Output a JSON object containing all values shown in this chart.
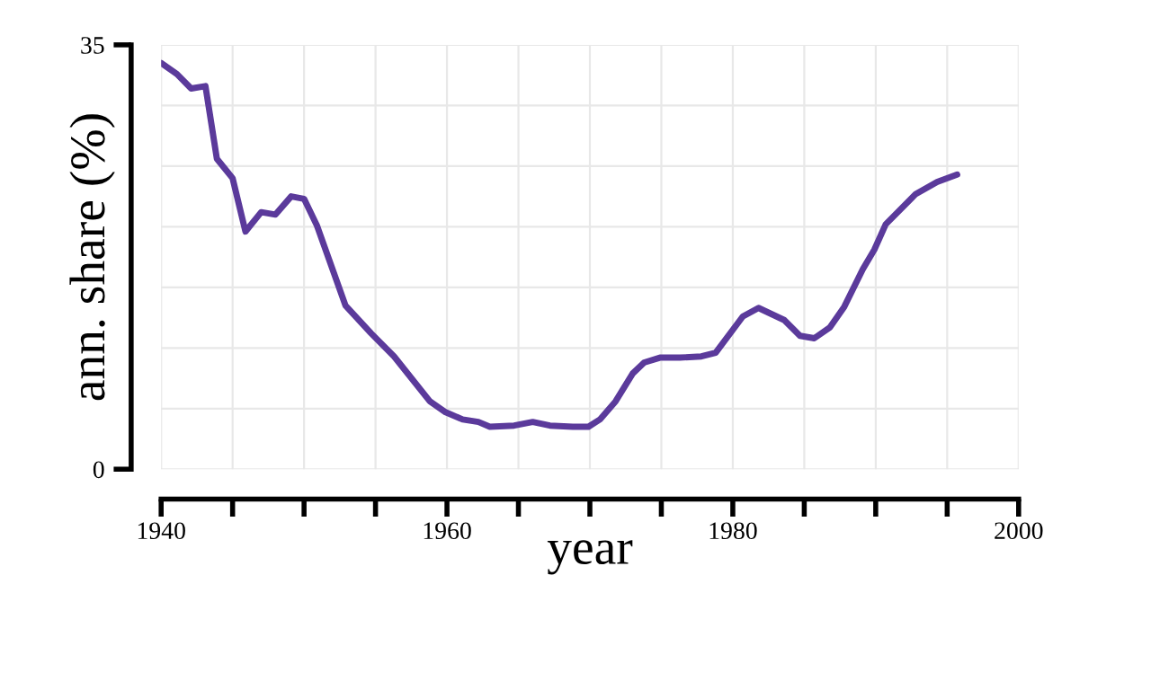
{
  "chart_data": {
    "type": "line",
    "xlabel": "year",
    "ylabel": "ann. share (%)",
    "xlim": [
      1940,
      2000
    ],
    "ylim": [
      0,
      35
    ],
    "xticks": [
      1940,
      {
        "value": 1945,
        "label": null
      },
      {
        "value": 1950,
        "label": null
      },
      {
        "value": 1955,
        "label": null
      },
      1960,
      {
        "value": 1965,
        "label": null
      },
      {
        "value": 1970,
        "label": null
      },
      {
        "value": 1975,
        "label": null
      },
      1980,
      {
        "value": 1985,
        "label": null
      },
      {
        "value": 1990,
        "label": null
      },
      {
        "value": 1995,
        "label": null
      },
      2000
    ],
    "yticks": [
      0,
      35
    ],
    "grid": true,
    "marker": "none",
    "line_style": "solid",
    "series": [
      {
        "color": "#5b3a9b",
        "x": [
          1940,
          1941.1,
          1942.1,
          1943.1,
          1943.9,
          1945,
          1945.9,
          1947,
          1948,
          1949.1,
          1950,
          1950.9,
          1952.9,
          1954.7,
          1956.3,
          1958.8,
          1959.9,
          1961.1,
          1962.2,
          1963,
          1964.7,
          1966,
          1967.2,
          1968.8,
          1969.9,
          1970.7,
          1971.8,
          1973,
          1973.8,
          1974.9,
          1976.3,
          1977.8,
          1978.8,
          1980.7,
          1981.8,
          1983.6,
          1984.7,
          1985.7,
          1986.8,
          1987.8,
          1989.1,
          1989.9,
          1990.7,
          1992.8,
          1994.3,
          1995.7
        ],
        "values": [
          33.5,
          32.6,
          31.4,
          31.6,
          25.6,
          24.0,
          19.6,
          21.2,
          21.0,
          22.5,
          22.3,
          20.1,
          13.5,
          11.2,
          9.3,
          5.6,
          4.7,
          4.1,
          3.9,
          3.5,
          3.6,
          3.9,
          3.6,
          3.5,
          3.5,
          4.1,
          5.6,
          7.9,
          8.8,
          9.2,
          9.2,
          9.3,
          9.6,
          12.6,
          13.3,
          12.3,
          11.0,
          10.8,
          11.7,
          13.4,
          16.5,
          18.1,
          20.2,
          22.7,
          23.7,
          24.3
        ]
      }
    ]
  }
}
